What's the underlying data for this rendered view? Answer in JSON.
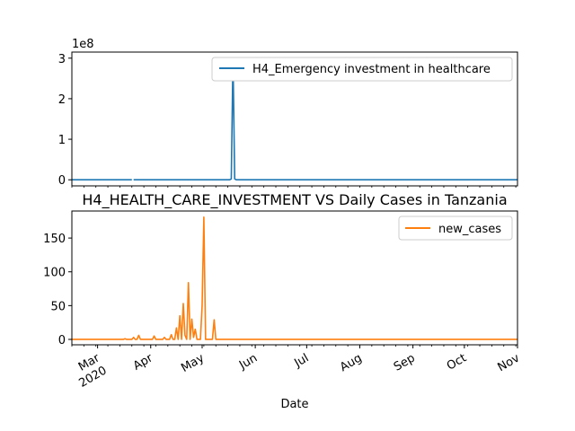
{
  "chart_data": [
    {
      "type": "line",
      "title": "",
      "xlabel": "",
      "ylabel": "",
      "scale_label": "1e8",
      "ylim": [
        -0.15,
        3.15
      ],
      "y_ticks": [
        0,
        1,
        2,
        3
      ],
      "y_tick_labels": [
        "0",
        "1",
        "2",
        "3"
      ],
      "xlim": [
        "2020-02-15",
        "2020-11-01"
      ],
      "legend": {
        "position": "top-right"
      },
      "grid": false,
      "series": [
        {
          "name": "H4_Emergency investment in healthcare",
          "color": "#1f77b4",
          "segments": [
            [
              [
                "2020-02-15",
                0
              ],
              [
                "2020-03-21",
                0
              ]
            ],
            [
              [
                "2020-03-22",
                0
              ],
              [
                "2020-05-17",
                0
              ],
              [
                "2020-05-18",
                0.02
              ],
              [
                "2020-05-19",
                3.0
              ],
              [
                "2020-05-20",
                0.02
              ],
              [
                "2020-05-21",
                0
              ],
              [
                "2020-11-01",
                0
              ]
            ]
          ]
        }
      ]
    },
    {
      "type": "line",
      "title": "H4_HEALTH_CARE_INVESTMENT VS Daily Cases in Tanzania",
      "xlabel": "Date",
      "ylabel": "",
      "ylim": [
        -8,
        190
      ],
      "y_ticks": [
        0,
        50,
        100,
        150
      ],
      "y_tick_labels": [
        "0",
        "50",
        "100",
        "150"
      ],
      "xlim": [
        "2020-02-15",
        "2020-11-01"
      ],
      "x_ticks": [
        "2020-03-01",
        "2020-04-01",
        "2020-05-01",
        "2020-06-01",
        "2020-07-01",
        "2020-08-01",
        "2020-09-01",
        "2020-10-01",
        "2020-11-01"
      ],
      "x_tick_labels": [
        "Mar\n2020",
        "Apr",
        "May",
        "Jun",
        "Jul",
        "Aug",
        "Sep",
        "Oct",
        "Nov"
      ],
      "legend": {
        "position": "top-right"
      },
      "grid": false,
      "series": [
        {
          "name": "new_cases",
          "color": "#ff7f0e",
          "points": [
            [
              "2020-02-15",
              0
            ],
            [
              "2020-03-16",
              0
            ],
            [
              "2020-03-17",
              1
            ],
            [
              "2020-03-18",
              0
            ],
            [
              "2020-03-21",
              0
            ],
            [
              "2020-03-22",
              3
            ],
            [
              "2020-03-23",
              0
            ],
            [
              "2020-03-24",
              0
            ],
            [
              "2020-03-25",
              6
            ],
            [
              "2020-03-26",
              0
            ],
            [
              "2020-04-02",
              0
            ],
            [
              "2020-04-03",
              5
            ],
            [
              "2020-04-04",
              0
            ],
            [
              "2020-04-08",
              0
            ],
            [
              "2020-04-09",
              3
            ],
            [
              "2020-04-10",
              0
            ],
            [
              "2020-04-12",
              0
            ],
            [
              "2020-04-13",
              7
            ],
            [
              "2020-04-14",
              0
            ],
            [
              "2020-04-15",
              0
            ],
            [
              "2020-04-16",
              17
            ],
            [
              "2020-04-17",
              0
            ],
            [
              "2020-04-18",
              35
            ],
            [
              "2020-04-19",
              0
            ],
            [
              "2020-04-20",
              53
            ],
            [
              "2020-04-21",
              6
            ],
            [
              "2020-04-22",
              0
            ],
            [
              "2020-04-23",
              84
            ],
            [
              "2020-04-24",
              0
            ],
            [
              "2020-04-25",
              30
            ],
            [
              "2020-04-26",
              3
            ],
            [
              "2020-04-27",
              15
            ],
            [
              "2020-04-28",
              0
            ],
            [
              "2020-04-30",
              0
            ],
            [
              "2020-05-01",
              50
            ],
            [
              "2020-05-02",
              181
            ],
            [
              "2020-05-03",
              0
            ],
            [
              "2020-05-07",
              0
            ],
            [
              "2020-05-08",
              29
            ],
            [
              "2020-05-09",
              0
            ],
            [
              "2020-11-01",
              0
            ]
          ]
        }
      ]
    }
  ]
}
